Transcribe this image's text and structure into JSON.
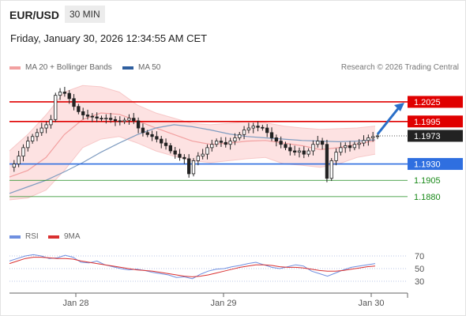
{
  "header": {
    "symbol": "EUR/USD",
    "timeframe": "30 MIN",
    "datetime": "Friday, January 30, 2026 12:34:55 AM CET"
  },
  "legend": {
    "ma20_label": "MA 20 + Bollinger Bands",
    "ma50_label": "MA 50",
    "credit": "Research © 2026 Trading Central"
  },
  "rsi_legend": {
    "rsi_label": "RSI",
    "ma9_label": "9MA"
  },
  "colors": {
    "resistance": "#e00000",
    "support": "#2f6fe0",
    "target": "#1a8a1a",
    "candle": "#222222",
    "ma20": "#f2a0a0",
    "ma50": "#7f9cc0",
    "band": "#fde2e2",
    "arrow": "#2a6fc8",
    "last_price_bg": "#222222",
    "rsi": "#6f8fe0",
    "rsi_ma": "#d93030"
  },
  "chart_data": [
    {
      "type": "candlestick",
      "x_ticks": [
        "Jan 28",
        "Jan 29",
        "Jan 30"
      ],
      "y_range": [
        1.184,
        1.206
      ],
      "levels": [
        {
          "label": "1.2025",
          "value": 1.2025,
          "kind": "resistance"
        },
        {
          "label": "1.1995",
          "value": 1.1995,
          "kind": "resistance"
        },
        {
          "label": "1.1930",
          "value": 1.193,
          "kind": "support"
        },
        {
          "label": "1.1905",
          "value": 1.1905,
          "kind": "target"
        },
        {
          "label": "1.1880",
          "value": 1.188,
          "kind": "target"
        }
      ],
      "last_price": {
        "label": "1.1973",
        "value": 1.1973
      },
      "price_path": [
        1.1925,
        1.193,
        1.1942,
        1.1955,
        1.1965,
        1.1972,
        1.1978,
        1.1985,
        1.199,
        1.1998,
        1.2035,
        1.204,
        1.2038,
        1.203,
        1.2018,
        1.201,
        1.2005,
        1.2003,
        1.2002,
        1.2,
        1.1999,
        1.2,
        1.1998,
        1.1996,
        1.1995,
        1.1997,
        1.2,
        1.1996,
        1.1985,
        1.1978,
        1.1975,
        1.1972,
        1.1968,
        1.1962,
        1.1958,
        1.195,
        1.1945,
        1.194,
        1.1938,
        1.1915,
        1.1935,
        1.1942,
        1.1945,
        1.1955,
        1.196,
        1.1965,
        1.1963,
        1.196,
        1.1965,
        1.197,
        1.1975,
        1.1982,
        1.1985,
        1.1988,
        1.1986,
        1.1985,
        1.1978,
        1.197,
        1.1965,
        1.196,
        1.1955,
        1.195,
        1.1948,
        1.195,
        1.1945,
        1.195,
        1.196,
        1.1965,
        1.196,
        1.1908,
        1.1935,
        1.1948,
        1.1955,
        1.1958,
        1.1955,
        1.196,
        1.1962,
        1.1966,
        1.197,
        1.1972,
        1.1973
      ],
      "bollinger": {
        "upper": [
          1.195,
          1.1975,
          1.2005,
          1.204,
          1.205,
          1.2048,
          1.204,
          1.202,
          1.2008,
          1.2,
          1.1992,
          1.199,
          1.1992,
          1.1995,
          1.1993,
          1.1988,
          1.1985,
          1.1983,
          1.1984,
          1.1985,
          1.1988
        ],
        "lower": [
          1.1875,
          1.1878,
          1.189,
          1.192,
          1.1955,
          1.1968,
          1.1972,
          1.1962,
          1.195,
          1.1942,
          1.1935,
          1.1932,
          1.1935,
          1.1938,
          1.194,
          1.193,
          1.1928,
          1.1925,
          1.193,
          1.194,
          1.1945
        ]
      },
      "ma20": [
        1.191,
        1.192,
        1.194,
        1.1975,
        1.1998,
        1.2008,
        1.2006,
        1.1996,
        1.1985,
        1.1975,
        1.1965,
        1.196,
        1.1962,
        1.1965,
        1.1966,
        1.1962,
        1.1958,
        1.1952,
        1.1955,
        1.196,
        1.1966
      ],
      "ma50": [
        1.1885,
        1.1895,
        1.1905,
        1.1918,
        1.1932,
        1.1948,
        1.1962,
        1.1975,
        1.1985,
        1.199,
        1.1987,
        1.1982,
        1.1976,
        1.1972,
        1.197,
        1.1968,
        1.1966,
        1.1965,
        1.1964,
        1.1965,
        1.1967
      ],
      "forecast_arrow": {
        "from": 1.1973,
        "to": 1.2025
      }
    },
    {
      "type": "line",
      "y_ticks": [
        "70",
        "50",
        "30"
      ],
      "y_range": [
        20,
        80
      ],
      "rsi": [
        62,
        66,
        70,
        72,
        70,
        66,
        67,
        71,
        68,
        60,
        59,
        62,
        56,
        53,
        50,
        48,
        49,
        47,
        44,
        42,
        40,
        36,
        37,
        34,
        41,
        46,
        49,
        50,
        53,
        55,
        58,
        60,
        56,
        52,
        50,
        53,
        56,
        54,
        46,
        42,
        38,
        43,
        48,
        52,
        54,
        56,
        58
      ],
      "rsi_ma": [
        58,
        62,
        66,
        68,
        68,
        67,
        66,
        66,
        65,
        62,
        60,
        58,
        56,
        54,
        52,
        50,
        48,
        47,
        46,
        44,
        42,
        40,
        38,
        37,
        38,
        40,
        43,
        46,
        49,
        52,
        54,
        56,
        56,
        55,
        53,
        52,
        52,
        51,
        49,
        47,
        46,
        46,
        47,
        49,
        51,
        53,
        54
      ]
    }
  ]
}
